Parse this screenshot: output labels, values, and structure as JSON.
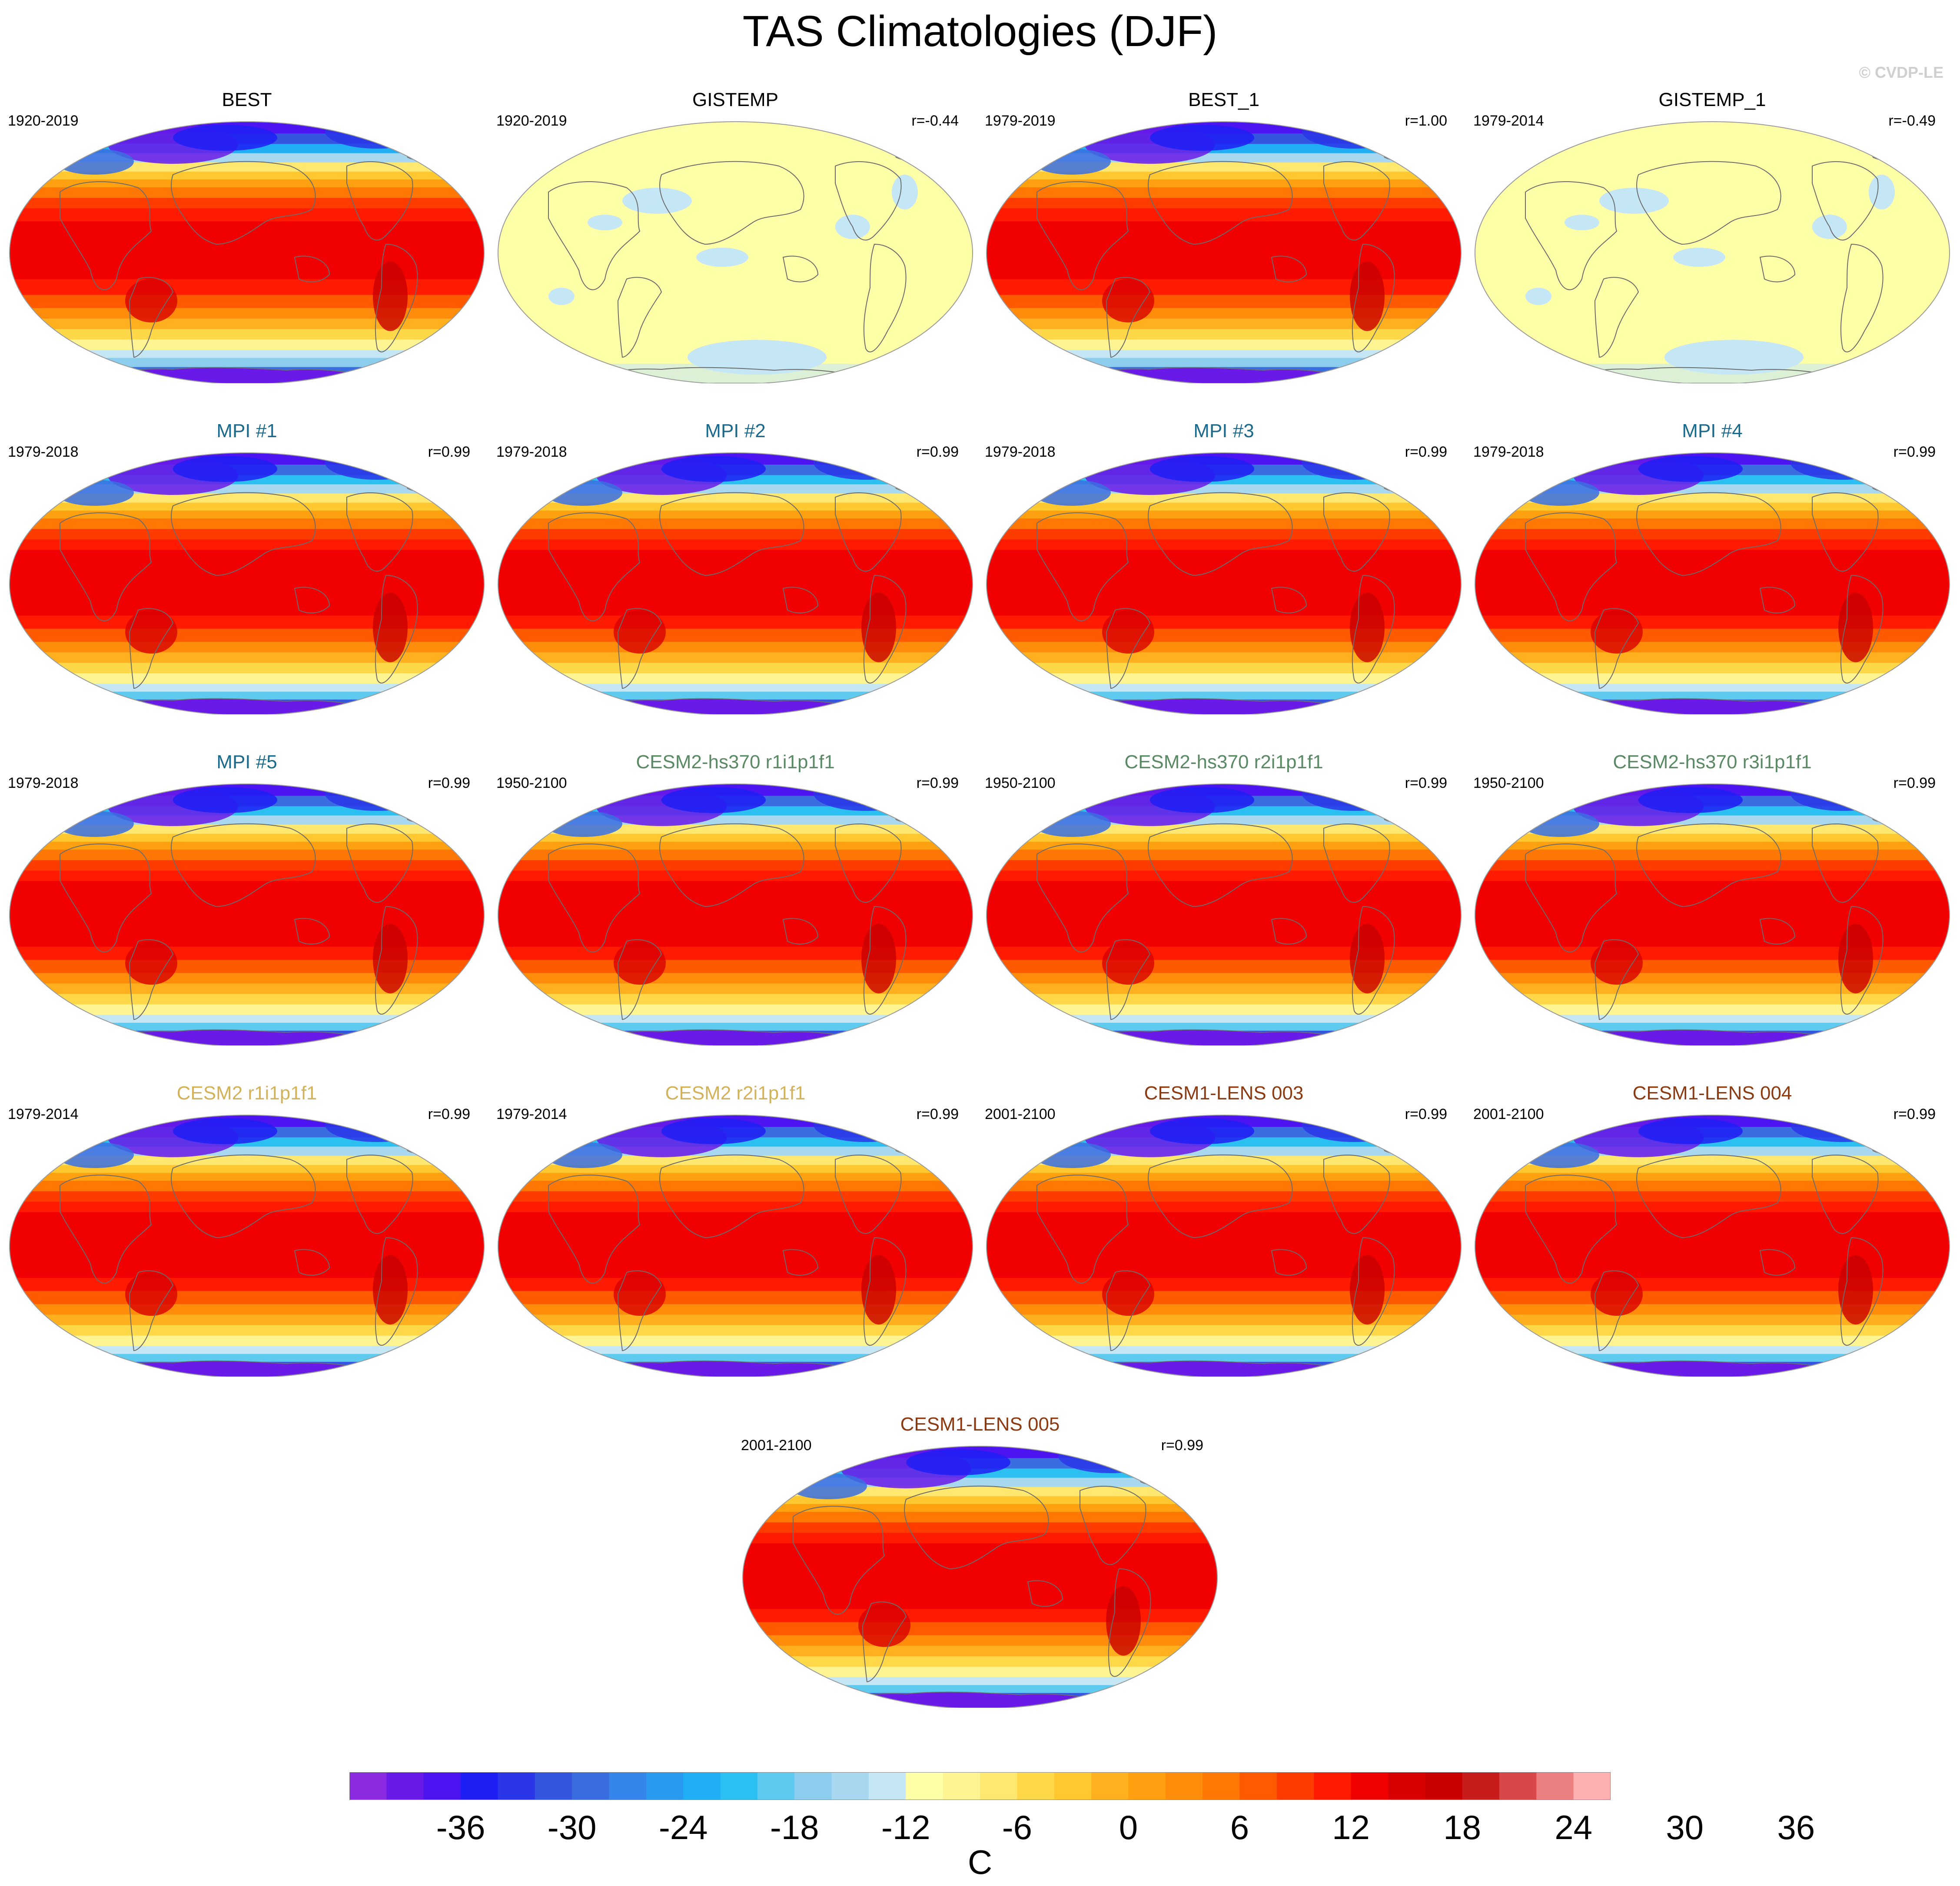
{
  "figure": {
    "title": "TAS Climatologies (DJF)",
    "credit": "© CVDP-LE"
  },
  "colors": {
    "series": {
      "black": "#000000",
      "blue": "#1b6a8c",
      "green": "#5a8a64",
      "gold": "#d4b25a",
      "brown": "#8c3a12"
    },
    "scale": [
      "#8a2be2",
      "#6a1ae8",
      "#4b14f0",
      "#1e1ef5",
      "#2a36e8",
      "#3355e0",
      "#3a6ee0",
      "#3585ea",
      "#2a9af0",
      "#20aef4",
      "#2cc0f2",
      "#5fcaf0",
      "#8ccdee",
      "#a8d8f0",
      "#c4e6f5",
      "#ffffa8",
      "#fff492",
      "#ffe870",
      "#ffd84a",
      "#ffc830",
      "#ffb01e",
      "#ffa010",
      "#ff8c0a",
      "#ff7805",
      "#ff5a00",
      "#ff3c00",
      "#ff1a00",
      "#f00000",
      "#d80000",
      "#c80000",
      "#c81c1c",
      "#d84848",
      "#ec8080",
      "#ffb0b0"
    ]
  },
  "panels": [
    {
      "title": "BEST",
      "period": "1920-2019",
      "corr": "",
      "color": "black",
      "field": "obs"
    },
    {
      "title": "GISTEMP",
      "period": "1920-2019",
      "corr": "r=-0.44",
      "color": "black",
      "field": "anomaly"
    },
    {
      "title": "BEST_1",
      "period": "1979-2019",
      "corr": "r=1.00",
      "color": "black",
      "field": "obs"
    },
    {
      "title": "GISTEMP_1",
      "period": "1979-2014",
      "corr": "r=-0.49",
      "color": "black",
      "field": "anomaly"
    },
    {
      "title": "MPI #1",
      "period": "1979-2018",
      "corr": "r=0.99",
      "color": "blue",
      "field": "model"
    },
    {
      "title": "MPI #2",
      "period": "1979-2018",
      "corr": "r=0.99",
      "color": "blue",
      "field": "model"
    },
    {
      "title": "MPI #3",
      "period": "1979-2018",
      "corr": "r=0.99",
      "color": "blue",
      "field": "model"
    },
    {
      "title": "MPI #4",
      "period": "1979-2018",
      "corr": "r=0.99",
      "color": "blue",
      "field": "model"
    },
    {
      "title": "MPI #5",
      "period": "1979-2018",
      "corr": "r=0.99",
      "color": "blue",
      "field": "model"
    },
    {
      "title": "CESM2-hs370 r1i1p1f1",
      "period": "1950-2100",
      "corr": "r=0.99",
      "color": "green",
      "field": "model"
    },
    {
      "title": "CESM2-hs370 r2i1p1f1",
      "period": "1950-2100",
      "corr": "r=0.99",
      "color": "green",
      "field": "model"
    },
    {
      "title": "CESM2-hs370 r3i1p1f1",
      "period": "1950-2100",
      "corr": "r=0.99",
      "color": "green",
      "field": "model"
    },
    {
      "title": "CESM2 r1i1p1f1",
      "period": "1979-2014",
      "corr": "r=0.99",
      "color": "gold",
      "field": "model"
    },
    {
      "title": "CESM2 r2i1p1f1",
      "period": "1979-2014",
      "corr": "r=0.99",
      "color": "gold",
      "field": "model"
    },
    {
      "title": "CESM1-LENS 003",
      "period": "2001-2100",
      "corr": "r=0.99",
      "color": "brown",
      "field": "model"
    },
    {
      "title": "CESM1-LENS 004",
      "period": "2001-2100",
      "corr": "r=0.99",
      "color": "brown",
      "field": "model"
    },
    {
      "title": "CESM1-LENS 005",
      "period": "2001-2100",
      "corr": "r=0.99",
      "color": "brown",
      "field": "model"
    }
  ],
  "colorbar": {
    "ticks": [
      "-36",
      "-30",
      "-24",
      "-18",
      "-12",
      "-6",
      "0",
      "6",
      "12",
      "18",
      "24",
      "30",
      "36"
    ],
    "unit": "C"
  }
}
